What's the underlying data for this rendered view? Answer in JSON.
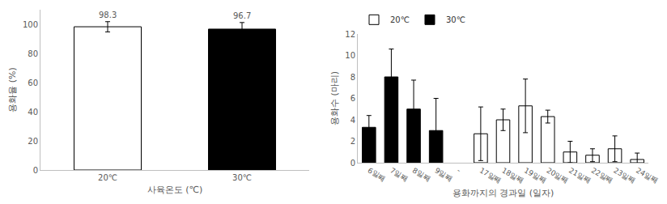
{
  "chart_data": [
    {
      "type": "bar",
      "categories": [
        "20℃",
        "30℃"
      ],
      "values": [
        98.3,
        96.7
      ],
      "errors": [
        3.5,
        4.5
      ],
      "colors": [
        "#ffffff",
        "#000000"
      ],
      "xlabel": "사육온도 (℃)",
      "ylabel": "용화율 (%)",
      "ylim": [
        0,
        110
      ],
      "yticks": [
        0,
        20,
        40,
        60,
        80,
        100
      ],
      "data_labels": true,
      "grid": false
    },
    {
      "type": "bar",
      "categories": [
        "6일째",
        "7일째",
        "8일째",
        "9일째",
        "-",
        "17일째",
        "18일째",
        "19일째",
        "20일째",
        "21일째",
        "22일째",
        "23일째",
        "24일째"
      ],
      "series": [
        {
          "name": "20℃",
          "color": "#ffffff",
          "values": [
            null,
            null,
            null,
            null,
            null,
            2.7,
            4.0,
            5.3,
            4.3,
            1.0,
            0.7,
            1.3,
            0.3
          ],
          "errors": [
            null,
            null,
            null,
            null,
            null,
            2.5,
            1.0,
            2.5,
            0.6,
            1.0,
            0.6,
            1.2,
            0.6
          ]
        },
        {
          "name": "30℃",
          "color": "#000000",
          "values": [
            3.3,
            8.0,
            5.0,
            3.0,
            null,
            null,
            null,
            null,
            null,
            null,
            null,
            null,
            null
          ],
          "errors": [
            1.1,
            2.6,
            2.7,
            3.0,
            null,
            null,
            null,
            null,
            null,
            null,
            null,
            null,
            null
          ]
        }
      ],
      "xlabel": "용화까지의 경과일 (일자)",
      "ylabel": "용화수 (마리)",
      "ylim": [
        0,
        12
      ],
      "yticks": [
        0,
        2,
        4,
        6,
        8,
        10,
        12
      ],
      "legend": "top left",
      "grid": false
    }
  ]
}
